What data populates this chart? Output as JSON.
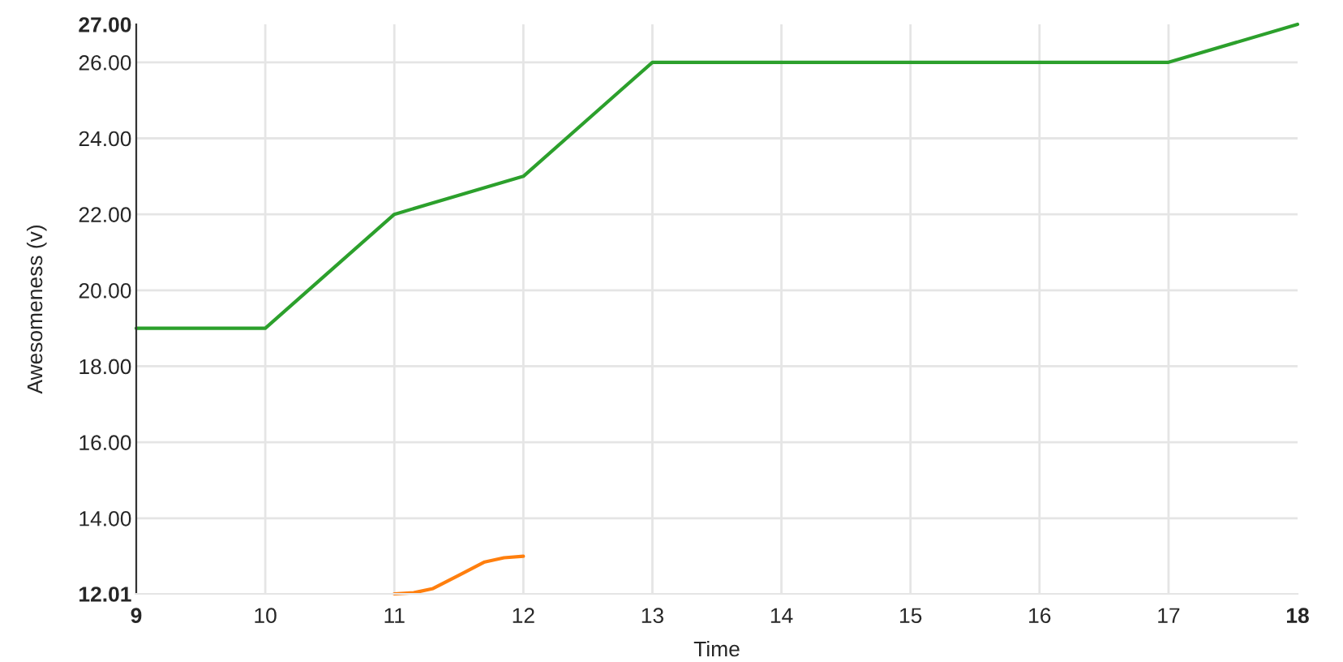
{
  "chart_data": {
    "type": "line",
    "xlabel": "Time",
    "ylabel": "Awesomeness (v)",
    "x": [
      9,
      10,
      11,
      12,
      13,
      14,
      15,
      16,
      17,
      18
    ],
    "series": [
      {
        "color": "#2ca02c",
        "values": [
          19,
          19,
          22,
          23,
          26,
          26,
          26,
          26,
          26,
          27
        ]
      },
      {
        "color": "#ff7f0e",
        "x": [
          11,
          11.15,
          11.3,
          11.5,
          11.7,
          11.85,
          12
        ],
        "values": [
          12.01,
          12.04,
          12.15,
          12.5,
          12.85,
          12.96,
          13
        ]
      }
    ],
    "xlim": [
      9,
      18
    ],
    "xticks": [
      9,
      10,
      11,
      12,
      13,
      14,
      15,
      16,
      17,
      18
    ],
    "ylim": [
      12.01,
      27
    ],
    "yticks": [
      {
        "value": 12.01,
        "label": "12.01"
      },
      {
        "value": 14,
        "label": "14.00"
      },
      {
        "value": 16,
        "label": "16.00"
      },
      {
        "value": 18,
        "label": "18.00"
      },
      {
        "value": 20,
        "label": "20.00"
      },
      {
        "value": 22,
        "label": "22.00"
      },
      {
        "value": 24,
        "label": "24.00"
      },
      {
        "value": 26,
        "label": "26.00"
      },
      {
        "value": 27,
        "label": "27.00"
      }
    ],
    "grid": true,
    "marker": "none",
    "line_style": "solid"
  }
}
